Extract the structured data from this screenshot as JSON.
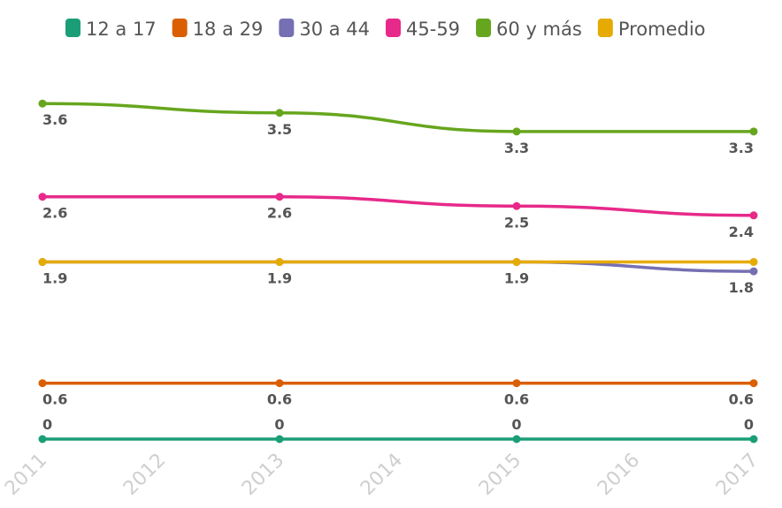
{
  "chart_data": {
    "type": "line",
    "x_ticks": [
      "2011",
      "2012",
      "2013",
      "2014",
      "2015",
      "2016",
      "2017"
    ],
    "x": [
      2011,
      2013,
      2015,
      2017
    ],
    "legend_position": "top",
    "grid": false,
    "series": [
      {
        "name": "12 a 17",
        "color": "#1b9e77",
        "values": [
          0,
          0,
          0,
          0
        ]
      },
      {
        "name": "18 a 29",
        "color": "#d95f02",
        "values": [
          0.6,
          0.6,
          0.6,
          0.6
        ]
      },
      {
        "name": "30 a 44",
        "color": "#7570b3",
        "values": [
          1.9,
          1.9,
          1.9,
          1.8
        ]
      },
      {
        "name": "45-59",
        "color": "#e7298a",
        "values": [
          2.6,
          2.6,
          2.5,
          2.4
        ]
      },
      {
        "name": "60 y más",
        "color": "#66a61e",
        "values": [
          3.6,
          3.5,
          3.3,
          3.3
        ]
      },
      {
        "name": "Promedio",
        "color": "#e6ab02",
        "values": [
          1.9,
          1.9,
          1.9,
          1.9
        ]
      }
    ]
  }
}
